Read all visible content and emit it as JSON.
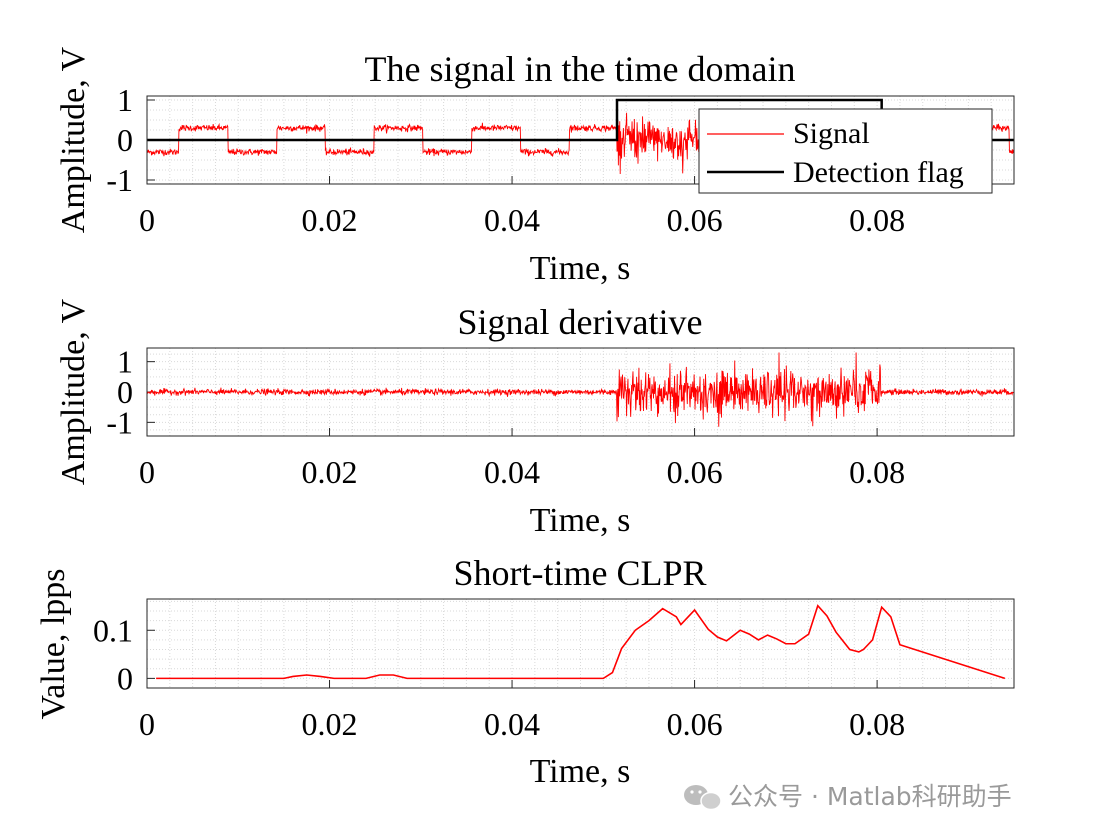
{
  "watermark": {
    "icon": "wechat-icon",
    "text": "公众号 · Matlab科研助手"
  },
  "chart_data": [
    {
      "type": "line",
      "title": "The signal in the time domain",
      "xlabel": "Time, s",
      "ylabel": "Amplitude, V",
      "xlim": [
        0,
        0.095
      ],
      "ylim": [
        -1.1,
        1.1
      ],
      "xticks": [
        0,
        0.02,
        0.04,
        0.06,
        0.08
      ],
      "xtick_labels": [
        "0",
        "0.02",
        "0.04",
        "0.06",
        "0.08"
      ],
      "yticks": [
        -1,
        0,
        1
      ],
      "ytick_labels": [
        "-1",
        "0",
        "1"
      ],
      "grid": "minor-dotted",
      "legend": {
        "location": "top-right",
        "entries": [
          {
            "label": "Signal",
            "color": "#ff0000"
          },
          {
            "label": "Detection flag",
            "color": "#000000"
          }
        ]
      },
      "series": [
        {
          "name": "Signal",
          "color": "#ff0000",
          "description_values": {
            "square_wave_amplitude": 0.3,
            "square_wave_period_s": 0.0107,
            "first_high_start_s": 0.0035,
            "noise_std_V": 0.04,
            "burst_start_s": 0.0515,
            "burst_end_s": 0.0805,
            "burst_peak_V": 0.85
          }
        },
        {
          "name": "Detection flag",
          "color": "#000000",
          "x": [
            0,
            0.0515,
            0.0515,
            0.0805,
            0.0805,
            0.095
          ],
          "y": [
            0,
            0,
            1,
            1,
            0,
            0
          ]
        }
      ]
    },
    {
      "type": "line",
      "title": "Signal derivative",
      "xlabel": "Time, s",
      "ylabel": "Amplitude, V",
      "xlim": [
        0,
        0.095
      ],
      "ylim": [
        -1.45,
        1.45
      ],
      "xticks": [
        0,
        0.02,
        0.04,
        0.06,
        0.08
      ],
      "xtick_labels": [
        "0",
        "0.02",
        "0.04",
        "0.06",
        "0.08"
      ],
      "yticks": [
        -1,
        0,
        1
      ],
      "ytick_labels": [
        "-1",
        "0",
        "1"
      ],
      "grid": "minor-dotted",
      "series": [
        {
          "color": "#ff0000",
          "description_values": {
            "baseline_noise_V": 0.12,
            "burst_start_s": 0.0515,
            "burst_end_s": 0.0805,
            "burst_peak_V": 1.3
          }
        }
      ]
    },
    {
      "type": "line",
      "title": "Short-time CLPR",
      "xlabel": "Time, s",
      "ylabel": "Value, lpps",
      "xlim": [
        0,
        0.095
      ],
      "ylim": [
        -0.02,
        0.165
      ],
      "xticks": [
        0,
        0.02,
        0.04,
        0.06,
        0.08
      ],
      "xtick_labels": [
        "0",
        "0.02",
        "0.04",
        "0.06",
        "0.08"
      ],
      "yticks": [
        0,
        0.1
      ],
      "ytick_labels": [
        "0",
        "0.1"
      ],
      "grid": "minor-dotted",
      "series": [
        {
          "color": "#ff0000",
          "x": [
            0.001,
            0.015,
            0.016,
            0.0175,
            0.019,
            0.0205,
            0.024,
            0.0255,
            0.027,
            0.0285,
            0.05,
            0.051,
            0.052,
            0.0535,
            0.055,
            0.0565,
            0.058,
            0.0585,
            0.06,
            0.0615,
            0.0625,
            0.0635,
            0.065,
            0.066,
            0.067,
            0.068,
            0.069,
            0.07,
            0.071,
            0.0725,
            0.0735,
            0.0745,
            0.0755,
            0.077,
            0.078,
            0.0785,
            0.0795,
            0.0805,
            0.0815,
            0.0825,
            0.094
          ],
          "y": [
            0,
            0,
            0.004,
            0.007,
            0.004,
            0,
            0,
            0.007,
            0.007,
            0,
            0,
            0.012,
            0.062,
            0.1,
            0.12,
            0.145,
            0.128,
            0.112,
            0.142,
            0.102,
            0.086,
            0.078,
            0.1,
            0.092,
            0.08,
            0.09,
            0.082,
            0.072,
            0.072,
            0.092,
            0.151,
            0.13,
            0.096,
            0.06,
            0.055,
            0.06,
            0.08,
            0.148,
            0.128,
            0.07,
            0
          ]
        }
      ]
    }
  ]
}
